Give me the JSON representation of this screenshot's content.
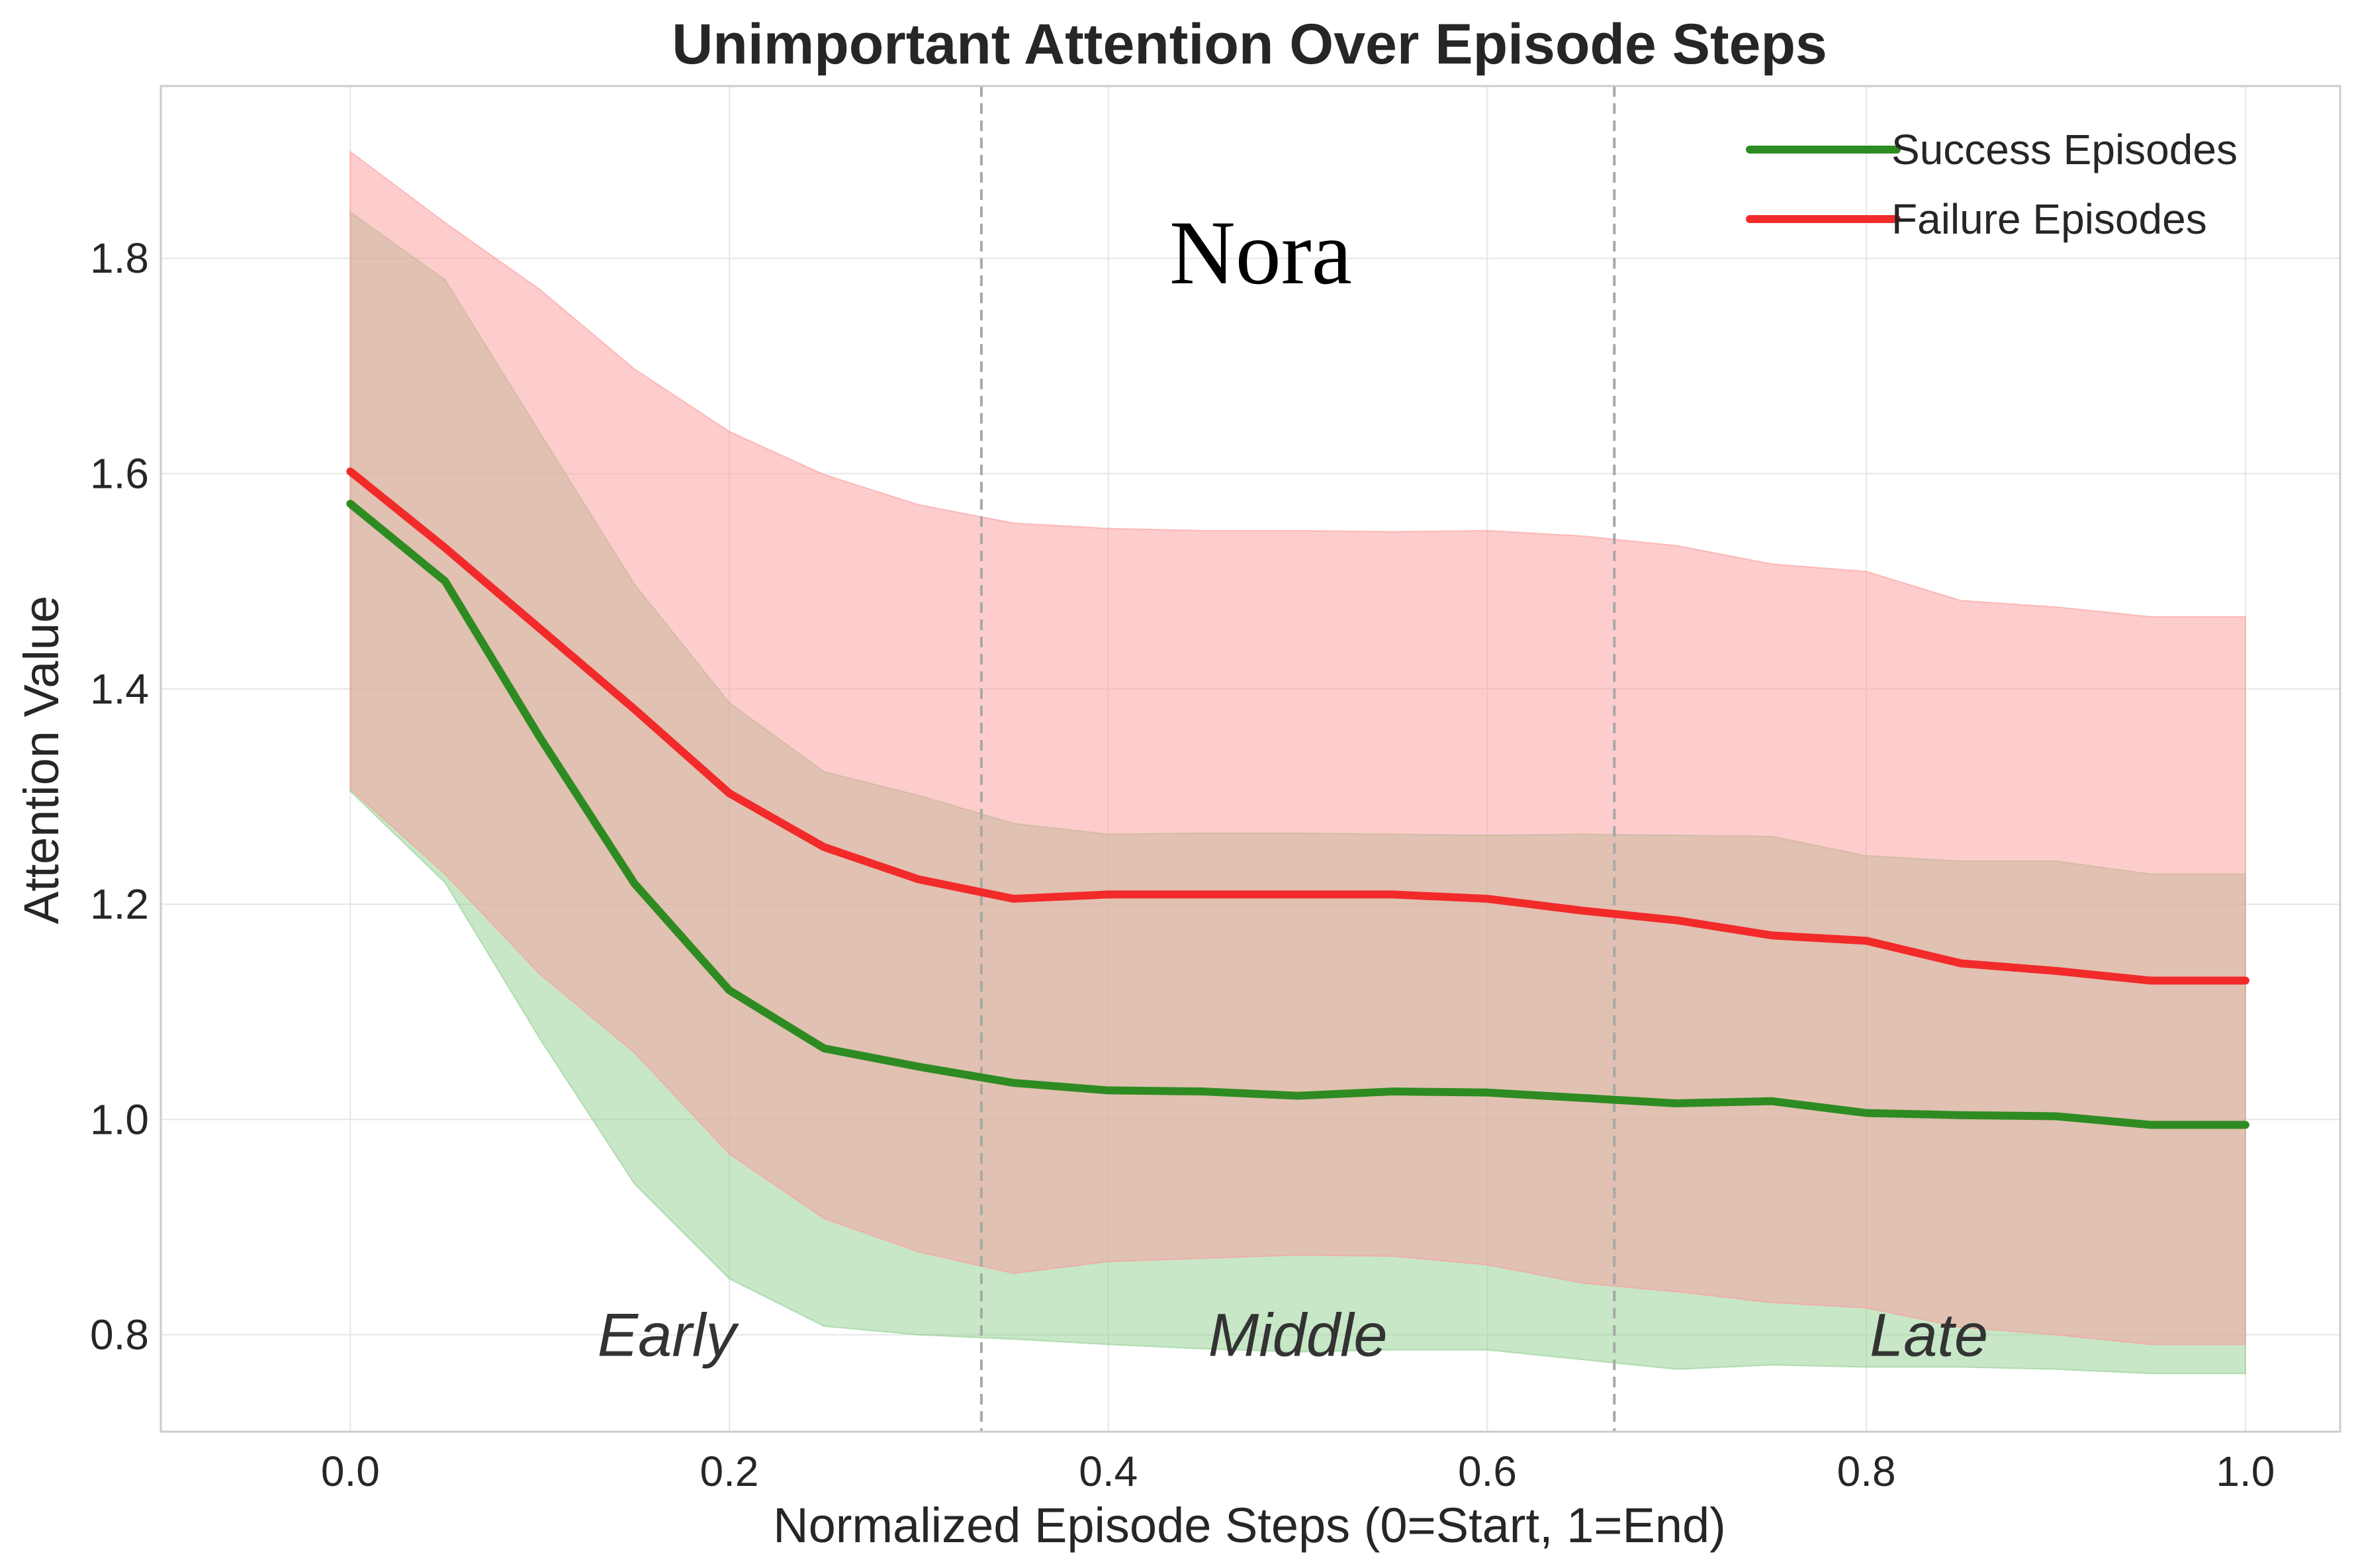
{
  "chart_data": {
    "type": "line",
    "title": "Unimportant Attention Over Episode Steps",
    "xlabel": "Normalized Episode Steps (0=Start, 1=End)",
    "ylabel": "Attention Value",
    "xlim": [
      -0.1,
      1.05
    ],
    "ylim": [
      0.71,
      1.96
    ],
    "xticks": [
      0.0,
      0.2,
      0.4,
      0.6,
      0.8,
      1.0
    ],
    "xtick_labels": [
      "0.0",
      "0.2",
      "0.4",
      "0.6",
      "0.8",
      "1.0"
    ],
    "yticks": [
      0.8,
      1.0,
      1.2,
      1.4,
      1.6,
      1.8
    ],
    "ytick_labels": [
      "0.8",
      "1.0",
      "1.2",
      "1.4",
      "1.6",
      "1.8"
    ],
    "grid": true,
    "legend_position": "top-right",
    "annotation": "Nora",
    "phase_dividers": [
      0.333,
      0.667
    ],
    "phases": [
      {
        "label": "Early",
        "x": 0.167,
        "y": 0.8
      },
      {
        "label": "Middle",
        "x": 0.5,
        "y": 0.8
      },
      {
        "label": "Late",
        "x": 0.833,
        "y": 0.8
      }
    ],
    "x": [
      0.0,
      0.05,
      0.1,
      0.15,
      0.2,
      0.25,
      0.3,
      0.35,
      0.4,
      0.45,
      0.5,
      0.55,
      0.6,
      0.65,
      0.7,
      0.75,
      0.8,
      0.85,
      0.9,
      0.95,
      1.0
    ],
    "series": [
      {
        "name": "Success Episodes",
        "color": "#2e8b22",
        "band_color": "#8fcf8f",
        "values": [
          1.572,
          1.5,
          1.355,
          1.219,
          1.12,
          1.066,
          1.049,
          1.034,
          1.027,
          1.026,
          1.022,
          1.026,
          1.025,
          1.02,
          1.015,
          1.017,
          1.006,
          1.004,
          1.003,
          0.995,
          0.995
        ],
        "upper": [
          1.843,
          1.78,
          1.638,
          1.497,
          1.387,
          1.323,
          1.301,
          1.275,
          1.265,
          1.266,
          1.266,
          1.265,
          1.264,
          1.265,
          1.264,
          1.263,
          1.245,
          1.24,
          1.24,
          1.228,
          1.228
        ],
        "lower": [
          1.305,
          1.22,
          1.075,
          0.94,
          0.852,
          0.808,
          0.8,
          0.796,
          0.791,
          0.787,
          0.784,
          0.786,
          0.786,
          0.777,
          0.768,
          0.772,
          0.77,
          0.77,
          0.768,
          0.764,
          0.764
        ]
      },
      {
        "name": "Failure Episodes",
        "color": "#f22a2a",
        "band_color": "#fb9b9b",
        "values": [
          1.602,
          1.531,
          1.456,
          1.381,
          1.303,
          1.253,
          1.223,
          1.205,
          1.209,
          1.209,
          1.209,
          1.209,
          1.205,
          1.194,
          1.185,
          1.171,
          1.166,
          1.145,
          1.138,
          1.129,
          1.129
        ],
        "upper": [
          1.899,
          1.833,
          1.771,
          1.697,
          1.639,
          1.599,
          1.571,
          1.554,
          1.549,
          1.547,
          1.547,
          1.546,
          1.547,
          1.542,
          1.533,
          1.516,
          1.509,
          1.482,
          1.476,
          1.467,
          1.467
        ],
        "lower": [
          1.307,
          1.228,
          1.135,
          1.062,
          0.968,
          0.908,
          0.877,
          0.857,
          0.868,
          0.871,
          0.874,
          0.873,
          0.865,
          0.848,
          0.84,
          0.83,
          0.825,
          0.807,
          0.8,
          0.791,
          0.791
        ]
      }
    ]
  }
}
